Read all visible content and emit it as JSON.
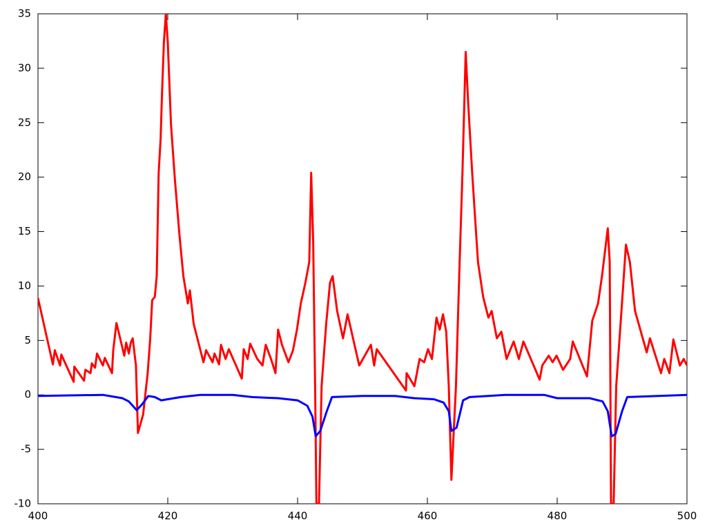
{
  "chart_data": {
    "type": "line",
    "xlim": [
      400,
      500
    ],
    "xticks": [
      400,
      420,
      440,
      460,
      480,
      500
    ],
    "ylim": [
      -10,
      35
    ],
    "yticks": [
      -10,
      -5,
      0,
      5,
      10,
      15,
      20,
      25,
      30,
      35
    ],
    "grid": false,
    "series": [
      {
        "color": "#ff0000",
        "x": [
          400,
          402.3,
          402.6,
          403.4,
          403.6,
          405.5,
          405.6,
          407.1,
          407.3,
          408.1,
          408.3,
          408.8,
          409.1,
          410.0,
          410.3,
          411.4,
          411.6,
          412.1,
          413.3,
          413.6,
          414.0,
          414.3,
          414.6,
          415.1,
          415.4,
          416.2,
          416.9,
          417.3,
          417.6,
          418.0,
          418.3,
          418.6,
          418.9,
          419.1,
          419.4,
          419.7,
          420.0,
          420.5,
          421.1,
          421.8,
          422.4,
          423.1,
          423.4,
          424.0,
          425.5,
          425.9,
          426.9,
          427.2,
          427.9,
          428.2,
          428.9,
          429.4,
          431.4,
          431.7,
          432.3,
          432.7,
          433.8,
          434.6,
          435.1,
          435.9,
          436.6,
          437.0,
          437.6,
          438.6,
          439.3,
          439.9,
          440.5,
          441.2,
          441.8,
          442.1,
          442.4,
          442.7,
          442.9,
          443.3,
          443.7,
          444.4,
          445.0,
          445.4,
          446.1,
          447.0,
          447.7,
          449.5,
          451.3,
          451.8,
          452.2,
          456.7,
          456.8,
          458.0,
          458.8,
          459.5,
          460.1,
          460.7,
          461.4,
          461.9,
          462.4,
          462.9,
          463.3,
          463.7,
          464.4,
          464.9,
          465.4,
          465.9,
          466.3,
          466.9,
          467.8,
          468.6,
          469.4,
          469.9,
          470.7,
          471.4,
          472.2,
          473.3,
          474.1,
          474.8,
          477.3,
          477.7,
          478.7,
          479.3,
          479.9,
          480.9,
          482.0,
          482.4,
          484.6,
          485.4,
          486.3,
          486.9,
          487.8,
          488.1,
          488.3,
          488.7,
          489.1,
          489.9,
          490.6,
          491.2,
          492.0,
          493.8,
          494.3,
          496.0,
          496.5,
          497.3,
          497.9,
          498.9,
          499.5,
          500
        ],
        "values": [
          8.9,
          2.8,
          4.1,
          2.7,
          3.7,
          1.2,
          2.6,
          1.3,
          2.3,
          2.0,
          2.9,
          2.5,
          3.8,
          2.7,
          3.4,
          2.0,
          4.1,
          6.6,
          3.6,
          4.8,
          3.8,
          4.8,
          5.2,
          2.7,
          -3.5,
          -1.8,
          2.0,
          5.2,
          8.7,
          9.0,
          10.9,
          20.4,
          23.6,
          27.4,
          32.4,
          35,
          32.4,
          24.8,
          19.8,
          14.7,
          10.9,
          8.4,
          9.6,
          6.5,
          3.0,
          4.1,
          3.0,
          3.8,
          2.8,
          4.6,
          3.3,
          4.2,
          1.5,
          4.2,
          3.3,
          4.7,
          3.3,
          2.7,
          4.6,
          3.3,
          2.0,
          6.0,
          4.6,
          3.0,
          4.1,
          6.0,
          8.4,
          10.3,
          12.2,
          20.4,
          14.1,
          0.8,
          -10,
          -10,
          0.8,
          6.5,
          10.3,
          10.9,
          7.7,
          5.2,
          7.4,
          2.7,
          4.6,
          2.7,
          4.2,
          0.4,
          2.0,
          0.8,
          3.3,
          3.0,
          4.2,
          3.3,
          7.1,
          6.0,
          7.4,
          5.8,
          0.8,
          -7.8,
          0.8,
          10.9,
          20.4,
          31.5,
          26.7,
          20.4,
          12.2,
          9.0,
          7.1,
          7.7,
          5.2,
          5.8,
          3.3,
          4.9,
          3.3,
          4.9,
          1.4,
          2.7,
          3.6,
          3.0,
          3.6,
          2.3,
          3.3,
          4.9,
          1.7,
          6.8,
          8.4,
          10.9,
          15.3,
          12.2,
          -10,
          -10,
          0.8,
          7.7,
          13.8,
          12.2,
          7.7,
          3.9,
          5.2,
          2.0,
          3.3,
          2.0,
          5.1,
          2.7,
          3.3,
          2.7
        ]
      },
      {
        "color": "#0000ff",
        "x": [
          400,
          410,
          412,
          413,
          414,
          415.2,
          416,
          417,
          418,
          419,
          420,
          422,
          425,
          430,
          433,
          437,
          440,
          441.5,
          442.3,
          442.8,
          443.5,
          444.5,
          445.3,
          450,
          455,
          458,
          461,
          462.5,
          463.3,
          463.7,
          464.5,
          465.5,
          466.5,
          472,
          478,
          480,
          485,
          487,
          487.8,
          488.4,
          489,
          490,
          490.8,
          500
        ],
        "values": [
          -0.1,
          0.0,
          -0.2,
          -0.3,
          -0.6,
          -1.4,
          -0.9,
          -0.1,
          -0.2,
          -0.5,
          -0.4,
          -0.2,
          0.0,
          0.0,
          -0.2,
          -0.3,
          -0.5,
          -1.0,
          -2.0,
          -3.8,
          -3.3,
          -1.5,
          -0.2,
          -0.1,
          -0.1,
          -0.3,
          -0.4,
          -0.7,
          -1.5,
          -3.3,
          -3.0,
          -0.5,
          -0.2,
          0.0,
          0.0,
          -0.3,
          -0.3,
          -0.6,
          -1.5,
          -3.8,
          -3.6,
          -1.5,
          -0.2,
          0.0
        ]
      }
    ]
  }
}
